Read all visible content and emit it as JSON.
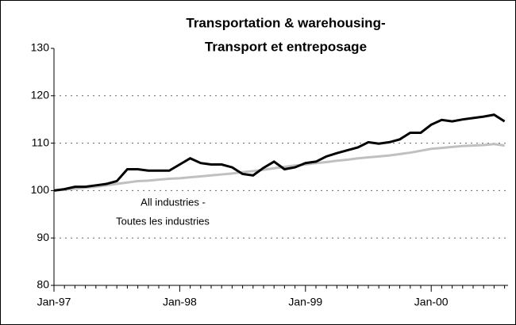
{
  "chart_data": {
    "type": "line",
    "title": "Transportation & warehousing-",
    "subtitle": "Transport et entreposage",
    "annotation": "All industries -",
    "annotation2": "Toutes les industries",
    "categories": [
      "Jan-97",
      null,
      null,
      null,
      null,
      null,
      null,
      null,
      null,
      null,
      null,
      null,
      "Jan-98",
      null,
      null,
      null,
      null,
      null,
      null,
      null,
      null,
      null,
      null,
      null,
      "Jan-99",
      null,
      null,
      null,
      null,
      null,
      null,
      null,
      null,
      null,
      null,
      null,
      "Jan-00",
      null,
      null,
      null,
      null,
      null,
      null,
      null
    ],
    "series": [
      {
        "name": "Transportation & warehousing",
        "color": "#000000",
        "values": [
          100,
          100.3,
          100.8,
          100.8,
          101.1,
          101.4,
          102,
          104.5,
          104.5,
          104.2,
          104.2,
          104.2,
          105.5,
          106.8,
          105.8,
          105.5,
          105.5,
          104.9,
          103.5,
          103.2,
          104.8,
          106.1,
          104.5,
          104.9,
          105.8,
          106.1,
          107.2,
          107.9,
          108.5,
          109.1,
          110.2,
          109.9,
          110.2,
          110.8,
          112.2,
          112.2,
          113.9,
          114.9,
          114.6,
          115,
          115.3,
          115.6,
          116,
          114.6
        ]
      },
      {
        "name": "All industries",
        "color": "#c0c0c0",
        "values": [
          100,
          100.2,
          100.4,
          100.6,
          100.8,
          101.1,
          101.4,
          101.7,
          102,
          102.1,
          102.3,
          102.5,
          102.6,
          102.8,
          103,
          103.2,
          103.4,
          103.6,
          103.9,
          104.1,
          104.4,
          104.7,
          105,
          105.3,
          105.5,
          105.8,
          106,
          106.3,
          106.5,
          106.8,
          107,
          107.2,
          107.4,
          107.7,
          108,
          108.4,
          108.8,
          109,
          109.2,
          109.4,
          109.5,
          109.6,
          109.8,
          109.5
        ]
      }
    ],
    "ylim": [
      80,
      130
    ],
    "yticks": [
      80,
      90,
      100,
      110,
      120,
      130
    ],
    "grid": true
  }
}
